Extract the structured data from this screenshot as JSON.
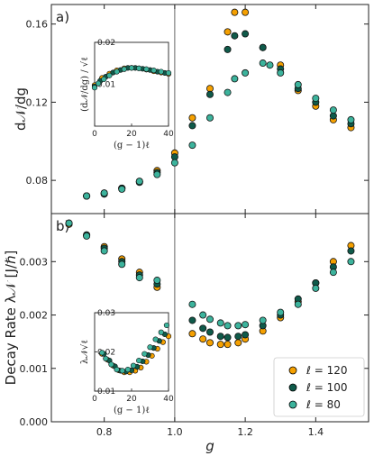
{
  "colors": {
    "l120": "#F5A000",
    "l100": "#0F5A4A",
    "l80": "#3CB39C"
  },
  "legend": [
    "ℓ = 120",
    "ℓ = 100",
    "ℓ = 80"
  ],
  "chart_data": [
    {
      "id": "a",
      "type": "scatter",
      "panel_label": "a)",
      "ylabel": "d𝒩/dg",
      "xlabel": "",
      "xlim": [
        0.65,
        1.55
      ],
      "ylim": [
        0.063,
        0.17
      ],
      "yticks": [
        0.08,
        0.12,
        0.16
      ],
      "ytick_labels": [
        "0.08",
        "0.12",
        "0.16"
      ],
      "xticks": [
        0.8,
        1.0,
        1.2,
        1.4
      ],
      "vline": 1.0,
      "series": [
        {
          "name": "ℓ = 120",
          "color": "l120",
          "points": [
            [
              0.75,
              0.072
            ],
            [
              0.8,
              0.0735
            ],
            [
              0.85,
              0.076
            ],
            [
              0.9,
              0.0795
            ],
            [
              0.95,
              0.085
            ],
            [
              1.0,
              0.094
            ],
            [
              1.05,
              0.112
            ],
            [
              1.1,
              0.127
            ],
            [
              1.15,
              0.156
            ],
            [
              1.17,
              0.166
            ],
            [
              1.2,
              0.166
            ],
            [
              1.25,
              0.148
            ],
            [
              1.3,
              0.139
            ],
            [
              1.35,
              0.126
            ],
            [
              1.4,
              0.118
            ],
            [
              1.45,
              0.111
            ],
            [
              1.5,
              0.107
            ]
          ]
        },
        {
          "name": "ℓ = 100",
          "color": "l100",
          "points": [
            [
              0.75,
              0.072
            ],
            [
              0.8,
              0.073
            ],
            [
              0.85,
              0.076
            ],
            [
              0.9,
              0.079
            ],
            [
              0.95,
              0.084
            ],
            [
              1.0,
              0.092
            ],
            [
              1.05,
              0.108
            ],
            [
              1.1,
              0.124
            ],
            [
              1.15,
              0.147
            ],
            [
              1.17,
              0.154
            ],
            [
              1.2,
              0.155
            ],
            [
              1.25,
              0.148
            ],
            [
              1.3,
              0.137
            ],
            [
              1.35,
              0.127
            ],
            [
              1.4,
              0.12
            ],
            [
              1.45,
              0.113
            ],
            [
              1.5,
              0.109
            ]
          ]
        },
        {
          "name": "ℓ = 80",
          "color": "l80",
          "points": [
            [
              0.75,
              0.072
            ],
            [
              0.8,
              0.0735
            ],
            [
              0.85,
              0.0755
            ],
            [
              0.9,
              0.0795
            ],
            [
              0.95,
              0.083
            ],
            [
              1.0,
              0.089
            ],
            [
              1.05,
              0.098
            ],
            [
              1.1,
              0.112
            ],
            [
              1.15,
              0.125
            ],
            [
              1.17,
              0.132
            ],
            [
              1.2,
              0.135
            ],
            [
              1.25,
              0.14
            ],
            [
              1.27,
              0.139
            ],
            [
              1.3,
              0.135
            ],
            [
              1.35,
              0.129
            ],
            [
              1.4,
              0.122
            ],
            [
              1.45,
              0.116
            ],
            [
              1.5,
              0.111
            ]
          ]
        }
      ],
      "inset": {
        "type": "scatter",
        "ylabel": "(d𝒩/dg) / √ℓ",
        "xlabel": "(g − 1)ℓ",
        "xlim": [
          0,
          40
        ],
        "ylim": [
          0.0,
          0.02
        ],
        "xticks": [
          0,
          20,
          40
        ],
        "yticks": [
          0.01,
          0.02
        ],
        "ytick_labels": [
          "0.01",
          "0.02"
        ],
        "series": [
          {
            "name": "ℓ = 120",
            "color": "l120",
            "points": [
              [
                0,
                0.0098
              ],
              [
                4,
                0.0115
              ],
              [
                8,
                0.0125
              ],
              [
                12,
                0.0133
              ],
              [
                16,
                0.0138
              ],
              [
                20,
                0.0139
              ],
              [
                24,
                0.0138
              ],
              [
                28,
                0.0135
              ],
              [
                32,
                0.0131
              ],
              [
                36,
                0.0128
              ],
              [
                40,
                0.0125
              ]
            ]
          },
          {
            "name": "ℓ = 100",
            "color": "l100",
            "points": [
              [
                0,
                0.0095
              ],
              [
                3,
                0.0108
              ],
              [
                6,
                0.0118
              ],
              [
                10,
                0.0128
              ],
              [
                14,
                0.0134
              ],
              [
                18,
                0.0139
              ],
              [
                22,
                0.0139
              ],
              [
                26,
                0.0137
              ],
              [
                30,
                0.0134
              ],
              [
                34,
                0.013
              ],
              [
                38,
                0.0127
              ]
            ]
          },
          {
            "name": "ℓ = 80",
            "color": "l80",
            "points": [
              [
                0,
                0.0092
              ],
              [
                2,
                0.0102
              ],
              [
                5,
                0.0112
              ],
              [
                8,
                0.0121
              ],
              [
                12,
                0.013
              ],
              [
                16,
                0.0136
              ],
              [
                20,
                0.0139
              ],
              [
                24,
                0.0138
              ],
              [
                28,
                0.0136
              ],
              [
                32,
                0.0133
              ],
              [
                36,
                0.013
              ],
              [
                40,
                0.0127
              ]
            ]
          }
        ]
      }
    },
    {
      "id": "b",
      "type": "scatter",
      "panel_label": "b)",
      "ylabel": "Decay Rate λ𝒩 [J/ℏ]",
      "xlabel": "g",
      "xlim": [
        0.65,
        1.55
      ],
      "ylim": [
        0.0,
        0.0039
      ],
      "yticks": [
        0.0,
        0.001,
        0.002,
        0.003
      ],
      "ytick_labels": [
        "0.000",
        "0.001",
        "0.002",
        "0.003"
      ],
      "xticks": [
        0.8,
        1.0,
        1.2,
        1.4
      ],
      "xtick_labels": [
        "0.8",
        "1.0",
        "1.2",
        "1.4"
      ],
      "vline": 1.0,
      "series": [
        {
          "name": "ℓ = 120",
          "color": "l120",
          "points": [
            [
              0.7,
              0.0037
            ],
            [
              0.75,
              0.0035
            ],
            [
              0.8,
              0.00328
            ],
            [
              0.85,
              0.00305
            ],
            [
              0.9,
              0.0028
            ],
            [
              0.95,
              0.00252
            ],
            [
              1.05,
              0.00165
            ],
            [
              1.08,
              0.00155
            ],
            [
              1.1,
              0.00148
            ],
            [
              1.13,
              0.00145
            ],
            [
              1.15,
              0.00145
            ],
            [
              1.18,
              0.00148
            ],
            [
              1.2,
              0.00155
            ],
            [
              1.25,
              0.0017
            ],
            [
              1.3,
              0.00195
            ],
            [
              1.35,
              0.00225
            ],
            [
              1.4,
              0.0026
            ],
            [
              1.45,
              0.003
            ],
            [
              1.5,
              0.0033
            ]
          ]
        },
        {
          "name": "ℓ = 100",
          "color": "l100",
          "points": [
            [
              0.7,
              0.00372
            ],
            [
              0.75,
              0.0035
            ],
            [
              0.8,
              0.00325
            ],
            [
              0.85,
              0.003
            ],
            [
              0.9,
              0.00275
            ],
            [
              0.95,
              0.00258
            ],
            [
              1.05,
              0.0019
            ],
            [
              1.08,
              0.00175
            ],
            [
              1.1,
              0.00168
            ],
            [
              1.13,
              0.0016
            ],
            [
              1.15,
              0.00158
            ],
            [
              1.18,
              0.0016
            ],
            [
              1.2,
              0.00163
            ],
            [
              1.25,
              0.0018
            ],
            [
              1.3,
              0.002
            ],
            [
              1.35,
              0.0023
            ],
            [
              1.4,
              0.0026
            ],
            [
              1.45,
              0.0029
            ],
            [
              1.5,
              0.0032
            ]
          ]
        },
        {
          "name": "ℓ = 80",
          "color": "l80",
          "points": [
            [
              0.7,
              0.00372
            ],
            [
              0.75,
              0.00348
            ],
            [
              0.8,
              0.0032
            ],
            [
              0.85,
              0.00295
            ],
            [
              0.9,
              0.0027
            ],
            [
              0.95,
              0.00265
            ],
            [
              1.05,
              0.0022
            ],
            [
              1.08,
              0.002
            ],
            [
              1.1,
              0.00192
            ],
            [
              1.13,
              0.00185
            ],
            [
              1.15,
              0.0018
            ],
            [
              1.18,
              0.0018
            ],
            [
              1.2,
              0.00182
            ],
            [
              1.25,
              0.0019
            ],
            [
              1.3,
              0.00205
            ],
            [
              1.35,
              0.0022
            ],
            [
              1.4,
              0.0025
            ],
            [
              1.45,
              0.0028
            ],
            [
              1.5,
              0.003
            ]
          ]
        }
      ],
      "inset": {
        "type": "scatter",
        "ylabel": "λ𝒩√ℓ",
        "xlabel": "(g − 1)ℓ",
        "xlim": [
          0,
          40
        ],
        "ylim": [
          0.01,
          0.03
        ],
        "xticks": [
          0,
          20,
          40
        ],
        "yticks": [
          0.01,
          0.02,
          0.03
        ],
        "ytick_labels": [
          "0.01",
          "0.02",
          "0.03"
        ],
        "series": [
          {
            "name": "ℓ = 120",
            "color": "l120",
            "points": [
              [
                4,
                0.0195
              ],
              [
                7,
                0.018
              ],
              [
                10,
                0.0165
              ],
              [
                13,
                0.0153
              ],
              [
                16,
                0.0148
              ],
              [
                19,
                0.0148
              ],
              [
                22,
                0.0152
              ],
              [
                25,
                0.016
              ],
              [
                28,
                0.0175
              ],
              [
                31,
                0.019
              ],
              [
                34,
                0.0208
              ],
              [
                37,
                0.0225
              ],
              [
                40,
                0.024
              ]
            ]
          },
          {
            "name": "ℓ = 100",
            "color": "l100",
            "points": [
              [
                5,
                0.0195
              ],
              [
                8,
                0.0178
              ],
              [
                11,
                0.0163
              ],
              [
                14,
                0.0152
              ],
              [
                17,
                0.015
              ],
              [
                20,
                0.0153
              ],
              [
                23,
                0.0162
              ],
              [
                26,
                0.0176
              ],
              [
                29,
                0.0192
              ],
              [
                32,
                0.021
              ],
              [
                35,
                0.0228
              ],
              [
                38,
                0.0245
              ]
            ]
          },
          {
            "name": "ℓ = 80",
            "color": "l80",
            "points": [
              [
                4,
                0.0198
              ],
              [
                6,
                0.0183
              ],
              [
                9,
                0.0168
              ],
              [
                12,
                0.0155
              ],
              [
                15,
                0.0152
              ],
              [
                18,
                0.0155
              ],
              [
                21,
                0.0165
              ],
              [
                24,
                0.0178
              ],
              [
                27,
                0.0195
              ],
              [
                30,
                0.0212
              ],
              [
                33,
                0.0232
              ],
              [
                36,
                0.025
              ],
              [
                39,
                0.0268
              ]
            ]
          }
        ]
      }
    }
  ]
}
